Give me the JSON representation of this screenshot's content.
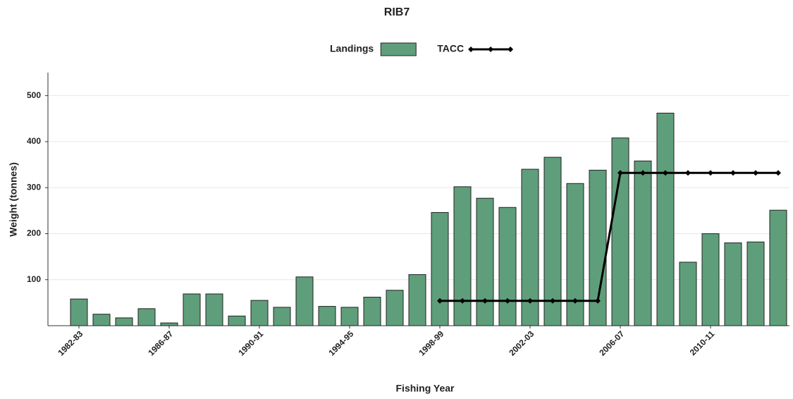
{
  "chart_data": {
    "type": "bar",
    "title": "RIB7",
    "x_label": "Fishing Year",
    "y_label": "Weight (tonnes)",
    "categories": [
      "1982-83",
      null,
      null,
      null,
      "1986-87",
      null,
      null,
      null,
      "1990-91",
      null,
      null,
      null,
      "1994-95",
      null,
      null,
      null,
      "1998-99",
      null,
      null,
      null,
      "2002-03",
      null,
      null,
      null,
      "2006-07",
      null,
      null,
      null,
      "2010-11",
      null,
      null,
      null
    ],
    "series": [
      {
        "name": "Landings",
        "type": "bar",
        "color": "#5f9e7a",
        "values": [
          58,
          25,
          17,
          37,
          6,
          69,
          69,
          21,
          55,
          40,
          106,
          42,
          40,
          62,
          77,
          111,
          246,
          302,
          277,
          257,
          340,
          366,
          309,
          338,
          408,
          358,
          462,
          138,
          200,
          180,
          182,
          251
        ]
      },
      {
        "name": "TACC",
        "type": "line",
        "color": "#000000",
        "values": [
          null,
          null,
          null,
          null,
          null,
          null,
          null,
          null,
          null,
          null,
          null,
          null,
          null,
          null,
          null,
          null,
          54,
          54,
          54,
          54,
          54,
          54,
          54,
          54,
          332,
          332,
          332,
          332,
          332,
          332,
          332,
          332
        ]
      }
    ],
    "ylim": [
      0,
      550
    ],
    "yticks": [
      100,
      200,
      300,
      400,
      500
    ],
    "grid": true
  }
}
